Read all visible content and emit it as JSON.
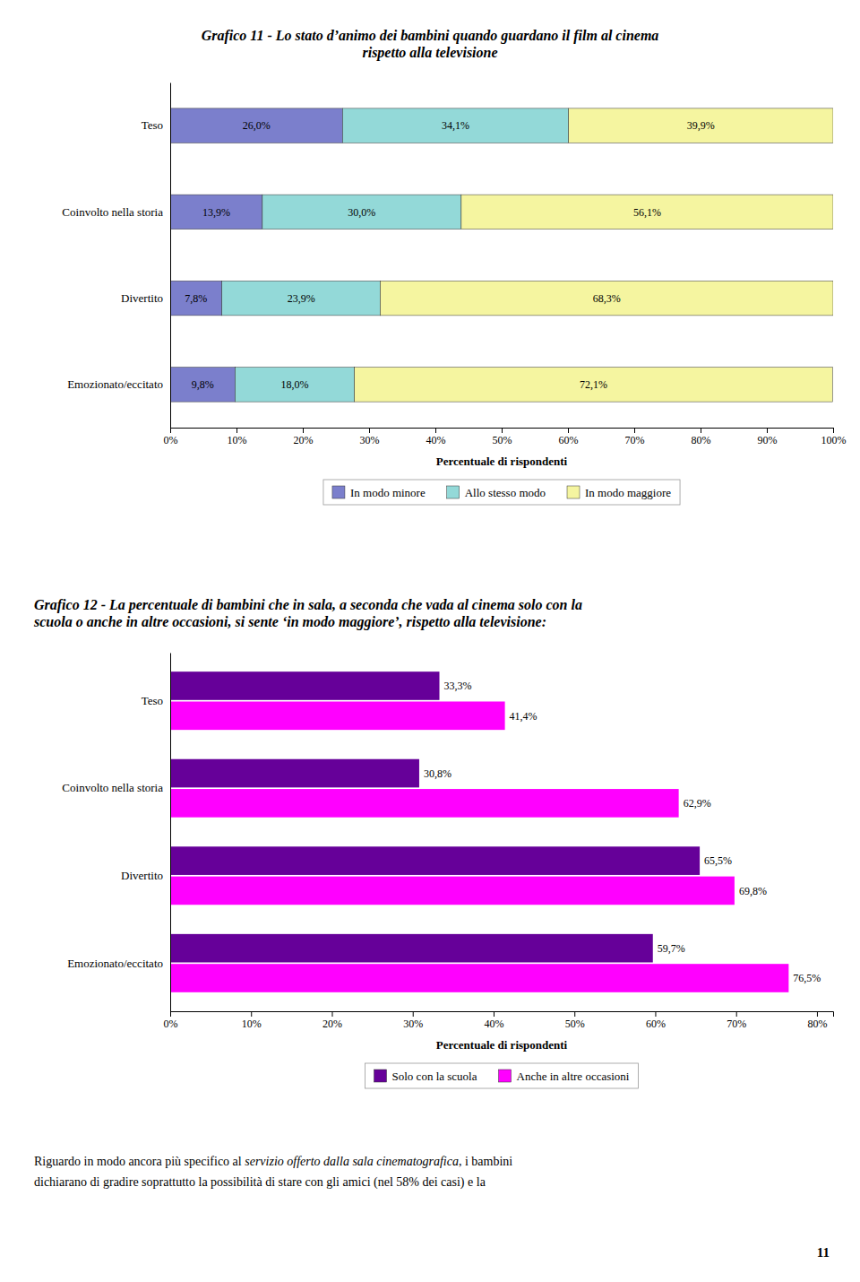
{
  "chart_data": [
    {
      "type": "bar",
      "orientation": "horizontal",
      "stacked": true,
      "data_labels": true,
      "grid": false,
      "legend": "bottom",
      "title": "Grafico 11 - Lo stato d’animo dei bambini quando guardano il film al cinema",
      "subtitle": "rispetto alla televisione",
      "xlabel": "Percentuale di rispondenti",
      "categories": [
        "Teso",
        "Coinvolto nella storia",
        "Divertito",
        "Emozionato/eccitato"
      ],
      "series": [
        {
          "name": "In modo minore",
          "color": "#7b7fcc",
          "values": [
            26.0,
            13.9,
            7.8,
            9.8
          ],
          "value_labels": [
            "26,0%",
            "13,9%",
            "7,8%",
            "9,8%"
          ]
        },
        {
          "name": "Allo stesso modo",
          "color": "#93d9d8",
          "values": [
            34.1,
            30.0,
            23.9,
            18.0
          ],
          "value_labels": [
            "34,1%",
            "30,0%",
            "23,9%",
            "18,0%"
          ]
        },
        {
          "name": "In modo maggiore",
          "color": "#f5f5a0",
          "values": [
            39.9,
            56.1,
            68.3,
            72.1
          ],
          "value_labels": [
            "39,9%",
            "56,1%",
            "68,3%",
            "72,1%"
          ]
        }
      ],
      "xlim": [
        0,
        100
      ],
      "xticks": [
        {
          "value": 0,
          "label": "0%"
        },
        {
          "value": 10,
          "label": "10%"
        },
        {
          "value": 20,
          "label": "20%"
        },
        {
          "value": 30,
          "label": "30%"
        },
        {
          "value": 40,
          "label": "40%"
        },
        {
          "value": 50,
          "label": "50%"
        },
        {
          "value": 60,
          "label": "60%"
        },
        {
          "value": 70,
          "label": "70%"
        },
        {
          "value": 80,
          "label": "80%"
        },
        {
          "value": 90,
          "label": "90%"
        },
        {
          "value": 100,
          "label": "100%"
        }
      ]
    },
    {
      "type": "bar",
      "orientation": "horizontal",
      "stacked": false,
      "data_labels": true,
      "grid": false,
      "legend": "bottom",
      "title": "Grafico 12 - La percentuale di bambini che in sala, a seconda che vada al cinema solo con la",
      "subtitle": "scuola o anche in altre occasioni, si sente ‘in modo maggiore’, rispetto alla televisione:",
      "xlabel": "Percentuale di rispondenti",
      "categories": [
        "Teso",
        "Coinvolto nella storia",
        "Divertito",
        "Emozionato/eccitato"
      ],
      "series": [
        {
          "name": "Solo con la scuola",
          "color": "#660099",
          "values": [
            33.3,
            30.8,
            65.5,
            59.7
          ],
          "value_labels": [
            "33,3%",
            "30,8%",
            "65,5%",
            "59,7%"
          ]
        },
        {
          "name": "Anche in altre occasioni",
          "color": "#ff00ff",
          "values": [
            41.4,
            62.9,
            69.8,
            76.5
          ],
          "value_labels": [
            "41,4%",
            "62,9%",
            "69,8%",
            "76,5%"
          ]
        }
      ],
      "xlim": [
        0,
        82
      ],
      "xticks": [
        {
          "value": 0,
          "label": "0%"
        },
        {
          "value": 10,
          "label": "10%"
        },
        {
          "value": 20,
          "label": "20%"
        },
        {
          "value": 30,
          "label": "30%"
        },
        {
          "value": 40,
          "label": "40%"
        },
        {
          "value": 50,
          "label": "50%"
        },
        {
          "value": 60,
          "label": "60%"
        },
        {
          "value": 70,
          "label": "70%"
        },
        {
          "value": 80,
          "label": "80%"
        }
      ]
    }
  ],
  "annotations": [
    "Riguardo in modo ancora più specifico al ",
    "servizio offerto dalla sala cinematografica",
    ", i bambini",
    "dichiarano di gradire soprattutto la possibilità di stare con gli amici (nel 58% dei casi) e la",
    "11"
  ]
}
